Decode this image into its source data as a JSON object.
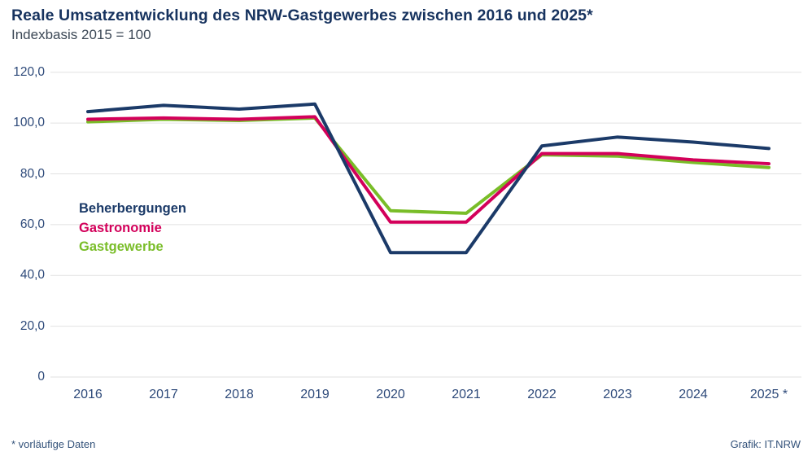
{
  "header": {
    "title": "Reale Umsatzentwicklung des NRW-Gastgewerbes zwischen 2016 und 2025*",
    "subtitle": "Indexbasis 2015 = 100"
  },
  "chart_data": {
    "type": "line",
    "categories": [
      "2016",
      "2017",
      "2018",
      "2019",
      "2020",
      "2021",
      "2022",
      "2023",
      "2024",
      "2025 *"
    ],
    "series": [
      {
        "name": "Beherbergungen",
        "color": "#1b3a68",
        "values": [
          104.5,
          107,
          105.5,
          107.5,
          49,
          49,
          91,
          94.5,
          92.5,
          90
        ]
      },
      {
        "name": "Gastronomie",
        "color": "#d3005a",
        "values": [
          101.5,
          102,
          101.5,
          102.5,
          61,
          61,
          88,
          88,
          85.5,
          84
        ]
      },
      {
        "name": "Gastgewerbe",
        "color": "#79bd28",
        "values": [
          100.5,
          101.5,
          101,
          102,
          65.5,
          64.5,
          87.5,
          87,
          84.5,
          82.5
        ]
      }
    ],
    "ylim": [
      0,
      120
    ],
    "ytick_values": [
      120,
      100,
      80,
      60,
      40,
      20,
      0
    ],
    "ytick_labels": [
      "120,0",
      "100,0",
      "80,0",
      "60,0",
      "40,0",
      "20,0",
      "0"
    ],
    "grid": true,
    "gridline_color": "#e2e2e2",
    "legend_position": "inside-left",
    "title": "Reale Umsatzentwicklung des NRW-Gastgewerbes zwischen 2016 und 2025*",
    "xlabel": "",
    "ylabel": ""
  },
  "footer": {
    "note": "* vorläufige Daten",
    "credit": "Grafik: IT.NRW"
  }
}
